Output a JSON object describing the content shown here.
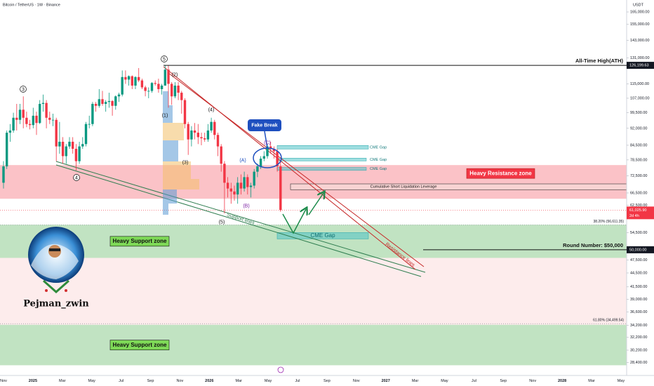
{
  "chart_data": {
    "type": "candlestick",
    "title": "Bitcoin / TetherUS · 1W · Binance",
    "currency": "USDT",
    "log_scale": true,
    "up_color": "#089981",
    "down_color": "#f23645",
    "ylim": [
      26600,
      175200
    ],
    "yticks": [
      {
        "value": 165000,
        "label": "165,000.00"
      },
      {
        "value": 155000,
        "label": "155,000.00"
      },
      {
        "value": 143000,
        "label": "143,000.00"
      },
      {
        "value": 131000,
        "label": "131,000.00"
      },
      {
        "value": 115000,
        "label": "115,000.00"
      },
      {
        "value": 107000,
        "label": "107,000.00"
      },
      {
        "value": 99500,
        "label": "99,500.00"
      },
      {
        "value": 92000,
        "label": "92,000.00"
      },
      {
        "value": 84500,
        "label": "84,500.00"
      },
      {
        "value": 78500,
        "label": "78,500.00"
      },
      {
        "value": 72500,
        "label": "72,500.00"
      },
      {
        "value": 66500,
        "label": "66,500.00"
      },
      {
        "value": 62500,
        "label": "62,500.00"
      },
      {
        "value": 54500,
        "label": "54,500.00"
      },
      {
        "value": 47500,
        "label": "47,500.00"
      },
      {
        "value": 44500,
        "label": "44,500.00"
      },
      {
        "value": 41500,
        "label": "41,500.00"
      },
      {
        "value": 39000,
        "label": "39,000.00"
      },
      {
        "value": 36600,
        "label": "36,600.00"
      },
      {
        "value": 34200,
        "label": "34,200.00"
      },
      {
        "value": 32200,
        "label": "32,200.00"
      },
      {
        "value": 30200,
        "label": "30,200.00"
      },
      {
        "value": 28400,
        "label": "28,400.00"
      }
    ],
    "xticks": [
      "Nov",
      "2025",
      "Mar",
      "May",
      "Jul",
      "Sep",
      "Nov",
      "2026",
      "Mar",
      "May",
      "Jul",
      "Sep",
      "Nov",
      "2027",
      "Mar",
      "May",
      "Jul",
      "Sep",
      "Nov",
      "2028",
      "Mar",
      "May"
    ],
    "ohlc": [
      [
        70000,
        78000,
        68000,
        76000
      ],
      [
        76000,
        91000,
        75000,
        90000
      ],
      [
        90000,
        94000,
        86000,
        91000
      ],
      [
        91000,
        99500,
        90000,
        97000
      ],
      [
        97000,
        104000,
        91000,
        96000
      ],
      [
        96000,
        104000,
        94000,
        101000
      ],
      [
        101000,
        108000,
        92000,
        97000
      ],
      [
        97000,
        100000,
        92500,
        94000
      ],
      [
        94000,
        96000,
        91500,
        93500
      ],
      [
        93500,
        102000,
        92000,
        98000
      ],
      [
        98000,
        100000,
        89000,
        94500
      ],
      [
        94500,
        106000,
        94000,
        104000
      ],
      [
        104000,
        109000,
        100000,
        104500
      ],
      [
        104500,
        106000,
        92000,
        97000
      ],
      [
        97000,
        100000,
        94000,
        96000
      ],
      [
        96000,
        99000,
        93000,
        96000
      ],
      [
        96000,
        97000,
        78000,
        84000
      ],
      [
        84000,
        95000,
        81000,
        86000
      ],
      [
        86000,
        88000,
        77000,
        80000
      ],
      [
        80000,
        85000,
        77000,
        84000
      ],
      [
        84000,
        88000,
        83000,
        86000
      ],
      [
        86000,
        88000,
        81000,
        83000
      ],
      [
        83000,
        85000,
        74500,
        78000
      ],
      [
        78000,
        86000,
        77000,
        84000
      ],
      [
        84000,
        88000,
        83000,
        85000
      ],
      [
        85000,
        95000,
        84000,
        94000
      ],
      [
        94000,
        98000,
        92000,
        94000
      ],
      [
        94000,
        105000,
        93000,
        104000
      ],
      [
        104000,
        105000,
        100000,
        103000
      ],
      [
        103000,
        112000,
        102000,
        106500
      ],
      [
        106500,
        111000,
        103000,
        104000
      ],
      [
        104000,
        106000,
        100000,
        105000
      ],
      [
        105000,
        110000,
        102000,
        105500
      ],
      [
        105500,
        106000,
        98000,
        103000
      ],
      [
        103000,
        108500,
        101000,
        108000
      ],
      [
        108000,
        110000,
        105000,
        109000
      ],
      [
        109000,
        123000,
        108000,
        119000
      ],
      [
        119000,
        123000,
        115000,
        117500
      ],
      [
        117500,
        120000,
        114000,
        119500
      ],
      [
        119500,
        120000,
        112000,
        114000
      ],
      [
        114000,
        119500,
        112000,
        119000
      ],
      [
        119000,
        124500,
        116000,
        117000
      ],
      [
        117000,
        118000,
        112000,
        113000
      ],
      [
        113000,
        114000,
        108000,
        111000
      ],
      [
        111000,
        113000,
        107000,
        111000
      ],
      [
        111000,
        116000,
        110000,
        115500
      ],
      [
        115500,
        117000,
        114000,
        115000
      ],
      [
        115000,
        118000,
        110000,
        112000
      ],
      [
        112000,
        115000,
        109000,
        114000
      ],
      [
        114000,
        126199.63,
        114000,
        123500
      ],
      [
        123500,
        126000,
        102000,
        115000
      ],
      [
        115000,
        116000,
        103500,
        108000
      ],
      [
        108000,
        116000,
        107000,
        114000
      ],
      [
        114000,
        116000,
        106000,
        110000
      ],
      [
        110000,
        111000,
        99000,
        106000
      ],
      [
        106000,
        107000,
        92000,
        94000
      ],
      [
        94000,
        95000,
        80500,
        87000
      ],
      [
        87000,
        93000,
        84000,
        91000
      ],
      [
        91000,
        94500,
        87000,
        90000
      ],
      [
        90000,
        94000,
        85000,
        88000
      ],
      [
        88000,
        90000,
        84500,
        87500
      ],
      [
        87500,
        90000,
        86000,
        87000
      ],
      [
        87000,
        94000,
        86000,
        91000
      ],
      [
        91000,
        97000,
        90000,
        95000
      ],
      [
        95000,
        96000,
        87000,
        89000
      ],
      [
        89000,
        90000,
        80000,
        84000
      ],
      [
        84000,
        85000,
        74000,
        77000
      ],
      [
        77000,
        78000,
        60000,
        70000
      ],
      [
        70000,
        72000,
        65000,
        68000
      ],
      [
        68000,
        70000,
        63000,
        67000
      ],
      [
        67000,
        69000,
        64000,
        66000
      ],
      [
        66000,
        72000,
        63000,
        70000
      ],
      [
        70000,
        73000,
        66000,
        68000
      ],
      [
        68000,
        74000,
        67000,
        72000
      ],
      [
        72000,
        73000,
        66000,
        68500
      ],
      [
        68500,
        70000,
        65000,
        69000
      ],
      [
        69000,
        75000,
        68000,
        74000
      ],
      [
        74000,
        77000,
        72000,
        76000
      ],
      [
        76000,
        80000,
        75000,
        79000
      ],
      [
        79000,
        82000,
        78000,
        80000
      ],
      [
        80000,
        85000,
        79000,
        84000
      ],
      [
        84000,
        86000,
        81000,
        83000
      ],
      [
        83000,
        84000,
        79000,
        82000
      ],
      [
        82000,
        83000,
        74000,
        76000
      ],
      [
        76000,
        78000,
        60500,
        61025.9
      ]
    ],
    "ath": {
      "label": "All-Time High(ATH)",
      "value": 126199.63,
      "value_label": "126,199.63"
    },
    "current": {
      "value": 61025.9,
      "value_label": "61,025.90",
      "countdown": "2d 4h"
    },
    "round_number": {
      "label": "Round Number: $50,000",
      "value": 50000,
      "value_label": "50,000.00"
    },
    "fib_levels": [
      {
        "value": 56611.35,
        "label": "38.20% (56,611.35)"
      },
      {
        "value": 34499.54,
        "label": "61.80% (34,499.54)"
      }
    ],
    "zones": [
      {
        "label": "Heavy Resistance zone",
        "range": [
          64600,
          76500
        ],
        "color": "#f23645"
      },
      {
        "label": "Heavy Support zone",
        "range": [
          48000,
          56700
        ],
        "color": "#4caf50"
      },
      {
        "label": "Heavy Support zone",
        "range": [
          28000,
          34300
        ],
        "color": "#4caf50"
      }
    ],
    "cme_gaps": [
      {
        "label": "CME Gap",
        "range": [
          82900,
          84400
        ]
      },
      {
        "label": "CME Gap",
        "range": [
          78100,
          79200
        ]
      },
      {
        "label": "CME Gap",
        "range": [
          74500,
          75600
        ]
      },
      {
        "label": "CME Gap",
        "range": [
          52800,
          54500
        ]
      }
    ],
    "liquidation": {
      "label": "Cumulative Short Liquidation Leverage",
      "range": [
        67600,
        69600
      ]
    },
    "wave_labels": [
      "3",
      "4",
      "5",
      "(2)",
      "(1)",
      "(3)",
      "(4)",
      "(5)",
      "(A)",
      "(B)",
      "(C)"
    ],
    "callout": "Fake Break",
    "support_label": "Support lines",
    "resistance_label": "Resistance lines",
    "author": "Pejman_zwin"
  }
}
